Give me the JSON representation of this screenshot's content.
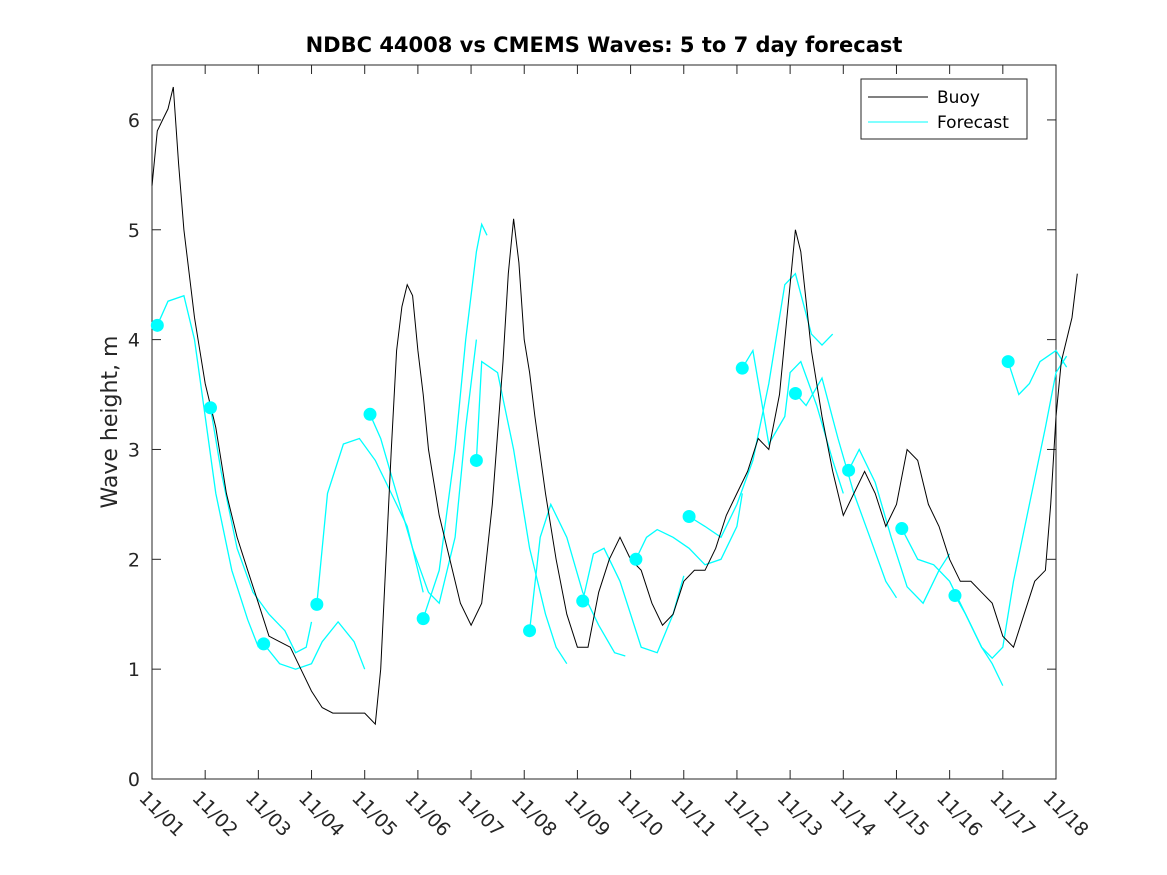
{
  "chart_data": {
    "type": "line",
    "title": "NDBC 44008 vs CMEMS Waves: 5 to 7 day forecast",
    "xlabel": "",
    "ylabel": "Wave height, m",
    "xlim_days": [
      0,
      17
    ],
    "ylim": [
      0,
      6.5
    ],
    "x_tick_labels": [
      "11/01",
      "11/02",
      "11/03",
      "11/04",
      "11/05",
      "11/06",
      "11/07",
      "11/08",
      "11/09",
      "11/10",
      "11/11",
      "11/12",
      "11/13",
      "11/14",
      "11/15",
      "11/16",
      "11/17",
      "11/18"
    ],
    "y_ticks": [
      0,
      1,
      2,
      3,
      4,
      5,
      6
    ],
    "legend": {
      "placement": "top-right",
      "entries": [
        "Buoy",
        "Forecast"
      ]
    },
    "colors": {
      "buoy": "#000000",
      "forecast": "#00ffff"
    },
    "buoy": [
      [
        0,
        5.4
      ],
      [
        0.1,
        5.9
      ],
      [
        0.2,
        6.0
      ],
      [
        0.3,
        6.1
      ],
      [
        0.4,
        6.3
      ],
      [
        0.5,
        5.6
      ],
      [
        0.6,
        5.0
      ],
      [
        0.7,
        4.6
      ],
      [
        0.8,
        4.2
      ],
      [
        1.0,
        3.6
      ],
      [
        1.2,
        3.2
      ],
      [
        1.4,
        2.6
      ],
      [
        1.6,
        2.2
      ],
      [
        1.8,
        1.9
      ],
      [
        2.0,
        1.6
      ],
      [
        2.2,
        1.3
      ],
      [
        2.4,
        1.25
      ],
      [
        2.6,
        1.2
      ],
      [
        2.8,
        1.0
      ],
      [
        3.0,
        0.8
      ],
      [
        3.2,
        0.65
      ],
      [
        3.4,
        0.6
      ],
      [
        3.6,
        0.6
      ],
      [
        3.8,
        0.6
      ],
      [
        4.0,
        0.6
      ],
      [
        4.2,
        0.5
      ],
      [
        4.3,
        1.0
      ],
      [
        4.4,
        2.0
      ],
      [
        4.5,
        3.0
      ],
      [
        4.6,
        3.9
      ],
      [
        4.7,
        4.3
      ],
      [
        4.8,
        4.5
      ],
      [
        4.9,
        4.4
      ],
      [
        5.0,
        3.9
      ],
      [
        5.1,
        3.5
      ],
      [
        5.2,
        3.0
      ],
      [
        5.4,
        2.4
      ],
      [
        5.6,
        2.0
      ],
      [
        5.8,
        1.6
      ],
      [
        6.0,
        1.4
      ],
      [
        6.2,
        1.6
      ],
      [
        6.4,
        2.5
      ],
      [
        6.6,
        3.8
      ],
      [
        6.7,
        4.6
      ],
      [
        6.8,
        5.1
      ],
      [
        6.9,
        4.7
      ],
      [
        7.0,
        4.0
      ],
      [
        7.1,
        3.7
      ],
      [
        7.2,
        3.3
      ],
      [
        7.4,
        2.6
      ],
      [
        7.6,
        2.0
      ],
      [
        7.8,
        1.5
      ],
      [
        8.0,
        1.2
      ],
      [
        8.2,
        1.2
      ],
      [
        8.4,
        1.7
      ],
      [
        8.6,
        2.0
      ],
      [
        8.8,
        2.2
      ],
      [
        9.0,
        2.0
      ],
      [
        9.2,
        1.9
      ],
      [
        9.4,
        1.6
      ],
      [
        9.6,
        1.4
      ],
      [
        9.8,
        1.5
      ],
      [
        10.0,
        1.8
      ],
      [
        10.2,
        1.9
      ],
      [
        10.4,
        1.9
      ],
      [
        10.6,
        2.1
      ],
      [
        10.8,
        2.4
      ],
      [
        11.0,
        2.6
      ],
      [
        11.2,
        2.8
      ],
      [
        11.4,
        3.1
      ],
      [
        11.6,
        3.0
      ],
      [
        11.8,
        3.5
      ],
      [
        12.0,
        4.5
      ],
      [
        12.1,
        5.0
      ],
      [
        12.2,
        4.8
      ],
      [
        12.4,
        3.9
      ],
      [
        12.6,
        3.3
      ],
      [
        12.8,
        2.8
      ],
      [
        13.0,
        2.4
      ],
      [
        13.2,
        2.6
      ],
      [
        13.4,
        2.8
      ],
      [
        13.6,
        2.6
      ],
      [
        13.8,
        2.3
      ],
      [
        14.0,
        2.5
      ],
      [
        14.2,
        3.0
      ],
      [
        14.4,
        2.9
      ],
      [
        14.6,
        2.5
      ],
      [
        14.8,
        2.3
      ],
      [
        15.0,
        2.0
      ],
      [
        15.2,
        1.8
      ],
      [
        15.4,
        1.8
      ],
      [
        15.6,
        1.7
      ],
      [
        15.8,
        1.6
      ],
      [
        16.0,
        1.3
      ],
      [
        16.2,
        1.2
      ],
      [
        16.4,
        1.5
      ],
      [
        16.6,
        1.8
      ],
      [
        16.8,
        1.9
      ],
      [
        16.9,
        2.5
      ],
      [
        17.0,
        3.3
      ],
      [
        17.1,
        3.8
      ],
      [
        17.3,
        4.2
      ],
      [
        17.4,
        4.6
      ]
    ],
    "forecast_segments": [
      [
        [
          0.1,
          4.13
        ],
        [
          0.3,
          4.35
        ],
        [
          0.6,
          4.4
        ],
        [
          0.8,
          4.0
        ],
        [
          1.0,
          3.3
        ],
        [
          1.2,
          2.6
        ],
        [
          1.5,
          1.9
        ],
        [
          1.8,
          1.45
        ],
        [
          2.0,
          1.2
        ]
      ],
      [
        [
          1.1,
          3.38
        ],
        [
          1.3,
          2.8
        ],
        [
          1.6,
          2.1
        ],
        [
          1.9,
          1.7
        ],
        [
          2.2,
          1.5
        ],
        [
          2.5,
          1.35
        ],
        [
          2.7,
          1.15
        ],
        [
          2.9,
          1.2
        ],
        [
          3.0,
          1.43
        ]
      ],
      [
        [
          2.1,
          1.23
        ],
        [
          2.4,
          1.05
        ],
        [
          2.7,
          1.0
        ],
        [
          3.0,
          1.05
        ],
        [
          3.2,
          1.25
        ],
        [
          3.5,
          1.43
        ],
        [
          3.8,
          1.25
        ],
        [
          4.0,
          1.0
        ]
      ],
      [
        [
          3.1,
          1.59
        ],
        [
          3.3,
          2.6
        ],
        [
          3.6,
          3.05
        ],
        [
          3.9,
          3.1
        ],
        [
          4.2,
          2.9
        ],
        [
          4.5,
          2.6
        ],
        [
          4.8,
          2.3
        ],
        [
          5.0,
          1.9
        ],
        [
          5.1,
          1.7
        ]
      ],
      [
        [
          4.1,
          3.32
        ],
        [
          4.3,
          3.1
        ],
        [
          4.6,
          2.6
        ],
        [
          4.9,
          2.1
        ],
        [
          5.2,
          1.7
        ],
        [
          5.4,
          1.6
        ],
        [
          5.7,
          2.2
        ],
        [
          5.9,
          3.2
        ],
        [
          6.1,
          4.0
        ]
      ],
      [
        [
          5.1,
          1.46
        ],
        [
          5.4,
          1.9
        ],
        [
          5.7,
          3.0
        ],
        [
          5.9,
          4.0
        ],
        [
          6.1,
          4.8
        ],
        [
          6.2,
          5.05
        ],
        [
          6.3,
          4.95
        ]
      ],
      [
        [
          6.1,
          2.9
        ],
        [
          6.2,
          3.8
        ],
        [
          6.5,
          3.7
        ],
        [
          6.8,
          3.0
        ],
        [
          7.1,
          2.1
        ],
        [
          7.4,
          1.5
        ],
        [
          7.6,
          1.2
        ],
        [
          7.8,
          1.05
        ]
      ],
      [
        [
          7.1,
          1.35
        ],
        [
          7.3,
          2.2
        ],
        [
          7.5,
          2.5
        ],
        [
          7.8,
          2.2
        ],
        [
          8.1,
          1.7
        ],
        [
          8.4,
          1.4
        ],
        [
          8.7,
          1.15
        ],
        [
          8.9,
          1.12
        ]
      ],
      [
        [
          8.1,
          1.62
        ],
        [
          8.3,
          2.05
        ],
        [
          8.5,
          2.1
        ],
        [
          8.8,
          1.8
        ],
        [
          9.0,
          1.5
        ],
        [
          9.2,
          1.2
        ],
        [
          9.5,
          1.15
        ],
        [
          9.8,
          1.5
        ],
        [
          10.0,
          1.85
        ]
      ],
      [
        [
          9.1,
          2.0
        ],
        [
          9.3,
          2.2
        ],
        [
          9.5,
          2.27
        ],
        [
          9.8,
          2.2
        ],
        [
          10.1,
          2.1
        ],
        [
          10.4,
          1.95
        ],
        [
          10.7,
          2.0
        ],
        [
          11.0,
          2.3
        ],
        [
          11.1,
          2.6
        ]
      ],
      [
        [
          10.1,
          2.39
        ],
        [
          10.4,
          2.3
        ],
        [
          10.7,
          2.2
        ],
        [
          11.0,
          2.5
        ],
        [
          11.3,
          2.9
        ],
        [
          11.6,
          3.6
        ],
        [
          11.9,
          4.5
        ],
        [
          12.1,
          4.6
        ],
        [
          12.4,
          4.05
        ],
        [
          12.6,
          3.95
        ],
        [
          12.8,
          4.05
        ]
      ],
      [
        [
          11.1,
          3.74
        ],
        [
          11.3,
          3.9
        ],
        [
          11.6,
          3.05
        ],
        [
          11.9,
          3.3
        ],
        [
          12.0,
          3.7
        ],
        [
          12.2,
          3.8
        ],
        [
          12.5,
          3.4
        ],
        [
          12.8,
          2.9
        ],
        [
          13.0,
          2.6
        ]
      ],
      [
        [
          12.1,
          3.51
        ],
        [
          12.3,
          3.4
        ],
        [
          12.6,
          3.65
        ],
        [
          12.9,
          3.1
        ],
        [
          13.2,
          2.6
        ],
        [
          13.5,
          2.2
        ],
        [
          13.8,
          1.8
        ],
        [
          14.0,
          1.65
        ]
      ],
      [
        [
          13.1,
          2.81
        ],
        [
          13.3,
          3.0
        ],
        [
          13.6,
          2.7
        ],
        [
          13.9,
          2.2
        ],
        [
          14.2,
          1.75
        ],
        [
          14.5,
          1.6
        ],
        [
          14.8,
          1.9
        ],
        [
          15.0,
          2.05
        ]
      ],
      [
        [
          14.1,
          2.28
        ],
        [
          14.4,
          2.0
        ],
        [
          14.7,
          1.95
        ],
        [
          15.0,
          1.8
        ],
        [
          15.3,
          1.5
        ],
        [
          15.6,
          1.2
        ],
        [
          15.8,
          1.05
        ],
        [
          16.0,
          0.85
        ]
      ],
      [
        [
          15.1,
          1.67
        ],
        [
          15.3,
          1.5
        ],
        [
          15.6,
          1.2
        ],
        [
          15.8,
          1.1
        ],
        [
          16.0,
          1.2
        ],
        [
          16.2,
          1.8
        ],
        [
          16.5,
          2.5
        ],
        [
          16.8,
          3.2
        ],
        [
          17.0,
          3.7
        ],
        [
          17.2,
          3.85
        ]
      ],
      [
        [
          16.1,
          3.8
        ],
        [
          16.3,
          3.5
        ],
        [
          16.5,
          3.6
        ],
        [
          16.7,
          3.8
        ],
        [
          17.0,
          3.9
        ],
        [
          17.2,
          3.75
        ]
      ]
    ],
    "forecast_points": [
      [
        0.1,
        4.13
      ],
      [
        1.1,
        3.38
      ],
      [
        2.1,
        1.23
      ],
      [
        3.1,
        1.59
      ],
      [
        4.1,
        3.32
      ],
      [
        5.1,
        1.46
      ],
      [
        6.1,
        2.9
      ],
      [
        7.1,
        1.35
      ],
      [
        8.1,
        1.62
      ],
      [
        9.1,
        2.0
      ],
      [
        10.1,
        2.39
      ],
      [
        11.1,
        3.74
      ],
      [
        12.1,
        3.51
      ],
      [
        13.1,
        2.81
      ],
      [
        14.1,
        2.28
      ],
      [
        15.1,
        1.67
      ],
      [
        16.1,
        3.8
      ]
    ]
  }
}
